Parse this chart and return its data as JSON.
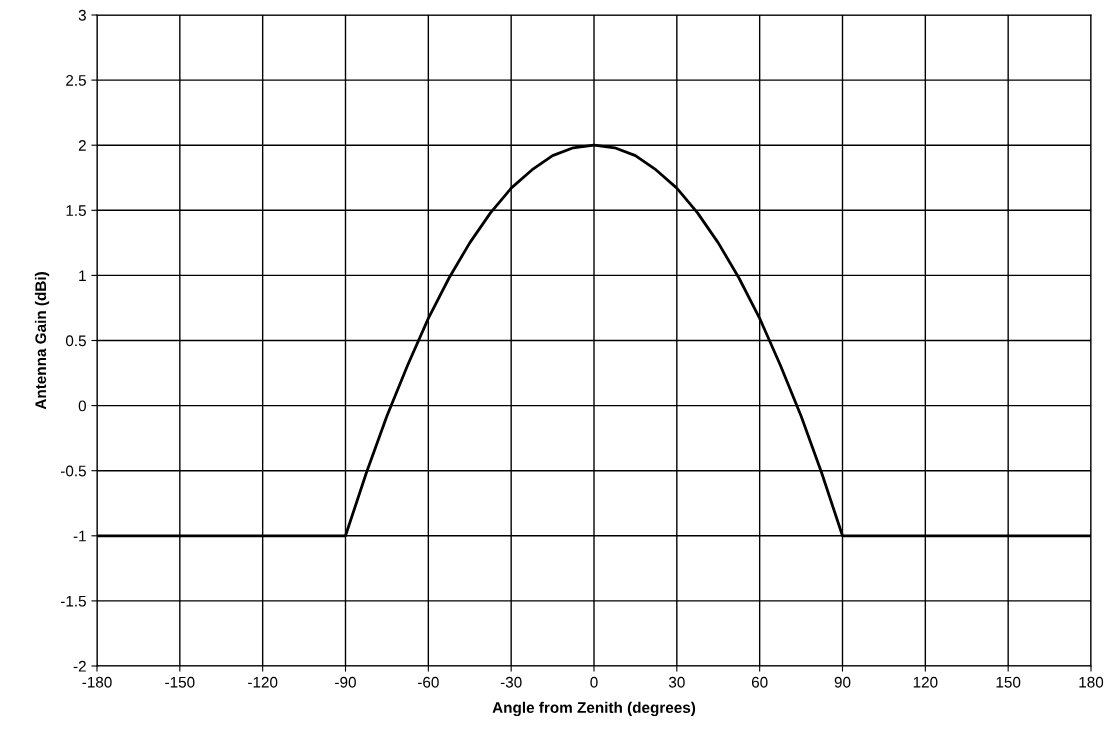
{
  "chart_data": {
    "type": "line",
    "xlabel": "Angle from Zenith (degrees)",
    "ylabel": "Antenna Gain (dBi)",
    "x": [
      -180,
      -150,
      -120,
      -90,
      -82.5,
      -75,
      -67.5,
      -60,
      -52.5,
      -45,
      -37.5,
      -30,
      -22.5,
      -15,
      -7.5,
      0,
      7.5,
      15,
      22.5,
      30,
      37.5,
      45,
      52.5,
      60,
      67.5,
      75,
      82.5,
      90,
      120,
      150,
      180
    ],
    "series": [
      {
        "color": "#000000",
        "values": [
          -1,
          -1,
          -1,
          -1,
          -0.52,
          -0.08,
          0.31,
          0.67,
          0.98,
          1.25,
          1.48,
          1.67,
          1.81,
          1.92,
          1.98,
          2,
          1.98,
          1.92,
          1.81,
          1.67,
          1.48,
          1.25,
          0.98,
          0.67,
          0.31,
          -0.08,
          -0.52,
          -1,
          -1,
          -1,
          -1
        ]
      }
    ],
    "xlim": [
      -180,
      180
    ],
    "xticks": [
      -180,
      -150,
      -120,
      -90,
      -60,
      -30,
      0,
      30,
      60,
      90,
      120,
      150,
      180
    ],
    "ylim": [
      -2,
      3
    ],
    "yticks": [
      -2,
      -1.5,
      -1,
      -0.5,
      0,
      0.5,
      1,
      1.5,
      2,
      2.5,
      3
    ],
    "grid": true,
    "marker": "none",
    "line_style": "solid"
  }
}
